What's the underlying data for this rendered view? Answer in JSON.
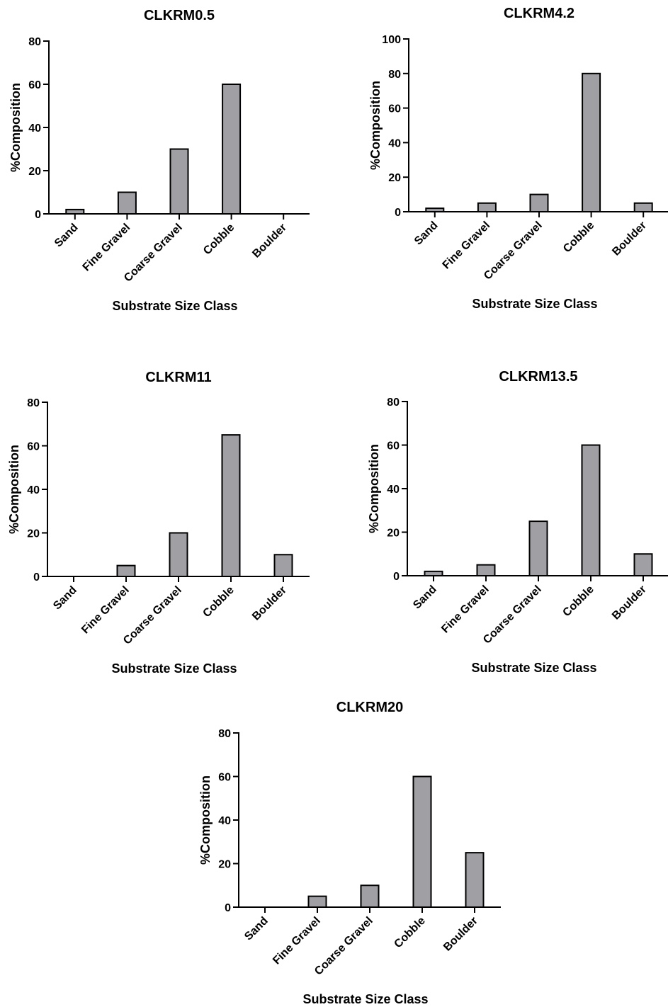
{
  "colors": {
    "bar_fill": "#a0a0a4",
    "bar_stroke": "#000000",
    "axis": "#000000",
    "text": "#000000",
    "background": "#ffffff"
  },
  "chart_data": [
    {
      "type": "bar",
      "title": "CLKRM0.5",
      "xlabel": "Substrate Size Class",
      "ylabel": "%Composition",
      "categories": [
        "Sand",
        "Fine Gravel",
        "Coarse Gravel",
        "Cobble",
        "Boulder"
      ],
      "values": [
        2,
        10,
        30,
        60,
        0
      ],
      "ylim": [
        0,
        80
      ],
      "yticks": [
        0,
        20,
        40,
        60,
        80
      ],
      "grid": false
    },
    {
      "type": "bar",
      "title": "CLKRM4.2",
      "xlabel": "Substrate Size Class",
      "ylabel": "%Composition",
      "categories": [
        "Sand",
        "Fine Gravel",
        "Coarse Gravel",
        "Cobble",
        "Boulder"
      ],
      "values": [
        2,
        5,
        10,
        80,
        5
      ],
      "ylim": [
        0,
        100
      ],
      "yticks": [
        0,
        20,
        40,
        60,
        80,
        100
      ],
      "grid": false
    },
    {
      "type": "bar",
      "title": "CLKRM11",
      "xlabel": "Substrate Size Class",
      "ylabel": "%Composition",
      "categories": [
        "Sand",
        "Fine Gravel",
        "Coarse Gravel",
        "Cobble",
        "Boulder"
      ],
      "values": [
        0,
        5,
        20,
        65,
        10
      ],
      "ylim": [
        0,
        80
      ],
      "yticks": [
        0,
        20,
        40,
        60,
        80
      ],
      "grid": false
    },
    {
      "type": "bar",
      "title": "CLKRM13.5",
      "xlabel": "Substrate Size Class",
      "ylabel": "%Composition",
      "categories": [
        "Sand",
        "Fine Gravel",
        "Coarse Gravel",
        "Cobble",
        "Boulder"
      ],
      "values": [
        2,
        5,
        25,
        60,
        10
      ],
      "ylim": [
        0,
        80
      ],
      "yticks": [
        0,
        20,
        40,
        60,
        80
      ],
      "grid": false
    },
    {
      "type": "bar",
      "title": "CLKRM20",
      "xlabel": "Substrate Size Class",
      "ylabel": "%Composition",
      "categories": [
        "Sand",
        "Fine Gravel",
        "Coarse Gravel",
        "Cobble",
        "Boulder"
      ],
      "values": [
        0,
        5,
        10,
        60,
        25
      ],
      "ylim": [
        0,
        80
      ],
      "yticks": [
        0,
        20,
        40,
        60,
        80
      ],
      "grid": false
    }
  ]
}
